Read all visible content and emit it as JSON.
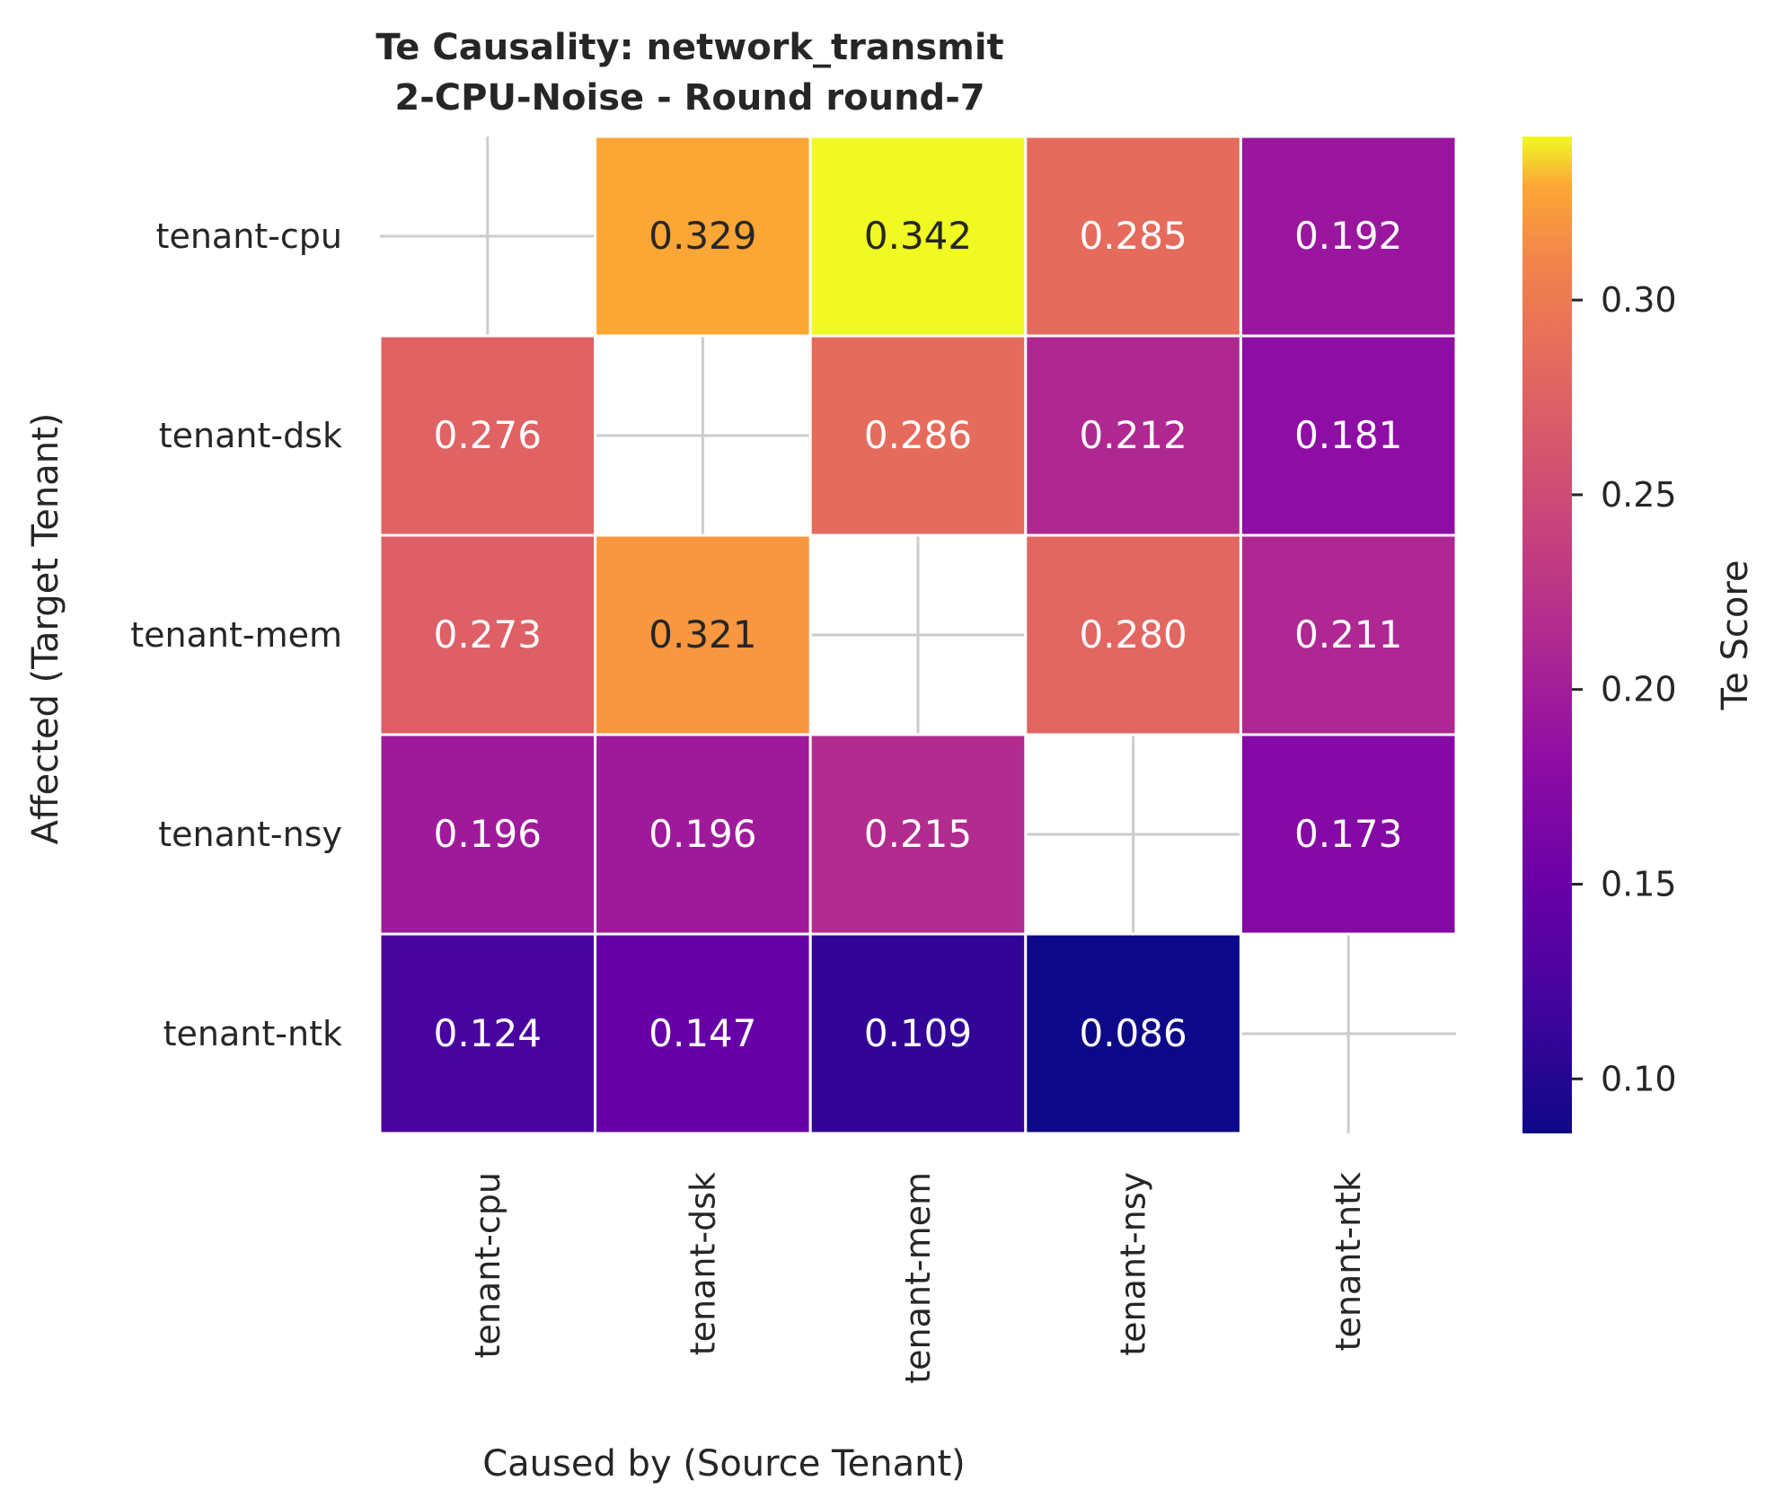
{
  "chart_data": {
    "type": "heatmap",
    "title_line1": "Te Causality: network_transmit",
    "title_line2": "2-CPU-Noise - Round round-7",
    "xlabel": "Caused by (Source Tenant)",
    "ylabel": "Affected (Target Tenant)",
    "colorbar_label": "Te Score",
    "colormap": "plasma",
    "vmin": 0.086,
    "vmax": 0.342,
    "x_categories": [
      "tenant-cpu",
      "tenant-dsk",
      "tenant-mem",
      "tenant-nsy",
      "tenant-ntk"
    ],
    "y_categories": [
      "tenant-cpu",
      "tenant-dsk",
      "tenant-mem",
      "tenant-nsy",
      "tenant-ntk"
    ],
    "values": [
      [
        null,
        0.329,
        0.342,
        0.285,
        0.192
      ],
      [
        0.276,
        null,
        0.286,
        0.212,
        0.181
      ],
      [
        0.273,
        0.321,
        null,
        0.28,
        0.211
      ],
      [
        0.196,
        0.196,
        0.215,
        null,
        0.173
      ],
      [
        0.124,
        0.147,
        0.109,
        0.086,
        null
      ]
    ],
    "labels": [
      [
        "",
        "0.329",
        "0.342",
        "0.285",
        "0.192"
      ],
      [
        "0.276",
        "",
        "0.286",
        "0.212",
        "0.181"
      ],
      [
        "0.273",
        "0.321",
        "",
        "0.280",
        "0.211"
      ],
      [
        "0.196",
        "0.196",
        "0.215",
        "",
        "0.173"
      ],
      [
        "0.124",
        "0.147",
        "0.109",
        "0.086",
        ""
      ]
    ],
    "colorbar_ticks": [
      "0.10",
      "0.15",
      "0.20",
      "0.25",
      "0.30"
    ],
    "grid": true
  }
}
